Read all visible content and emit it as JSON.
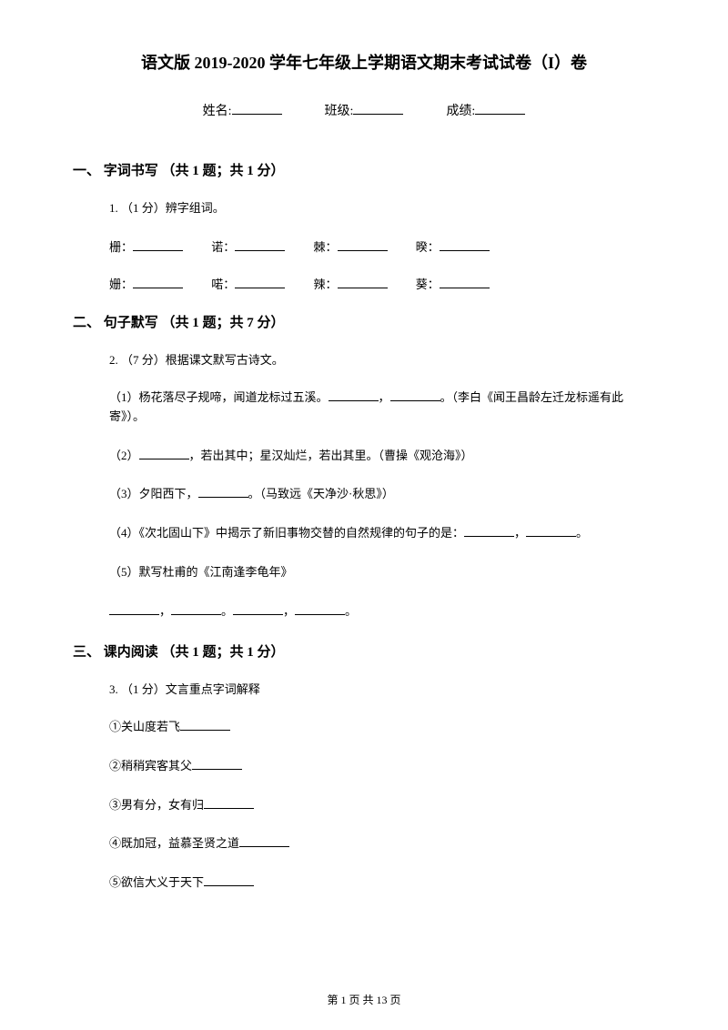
{
  "title": "语文版 2019-2020 学年七年级上学期语文期末考试试卷（I）卷",
  "header": {
    "name_label": "姓名:",
    "class_label": "班级:",
    "score_label": "成绩:"
  },
  "section1": {
    "heading": "一、 字词书写 （共 1 题；共 1 分）",
    "q1": "1. （1 分）辨字组词。",
    "row1": {
      "c1": "栅：",
      "c2": "诺：",
      "c3": "棘：",
      "c4": "暌："
    },
    "row2": {
      "c1": "姗：",
      "c2": "喏：",
      "c3": "辣：",
      "c4": "葵："
    }
  },
  "section2": {
    "heading": "二、 句子默写 （共 1 题；共 7 分）",
    "q2": "2. （7 分）根据课文默写古诗文。",
    "item1_a": "（1）杨花落尽子规啼，闻道龙标过五溪。",
    "item1_b": "，",
    "item1_c": "。（李白《闻王昌龄左迁龙标遥有此寄》）。",
    "item2_a": "（2）",
    "item2_b": "，若出其中；星汉灿烂，若出其里。（曹操《观沧海》）",
    "item3_a": "（3）夕阳西下，",
    "item3_b": "。（马致远《天净沙·秋思》）",
    "item4_a": "（4）《次北固山下》中揭示了新旧事物交替的自然规律的句子的是：",
    "item4_b": "，",
    "item4_c": "。",
    "item5": "（5）默写杜甫的《江南逢李龟年》",
    "item5_blanks_a": "，",
    "item5_blanks_b": "。",
    "item5_blanks_c": "，",
    "item5_blanks_d": "。"
  },
  "section3": {
    "heading": "三、 课内阅读 （共 1 题；共 1 分）",
    "q3": "3. （1 分）文言重点字词解释",
    "item1": "①关山度若飞",
    "item2": "②稍稍宾客其父",
    "item3": "③男有分，女有归",
    "item4": "④既加冠，益慕圣贤之道",
    "item5": "⑤欲信大义于天下"
  },
  "footer": "第 1 页 共 13 页"
}
